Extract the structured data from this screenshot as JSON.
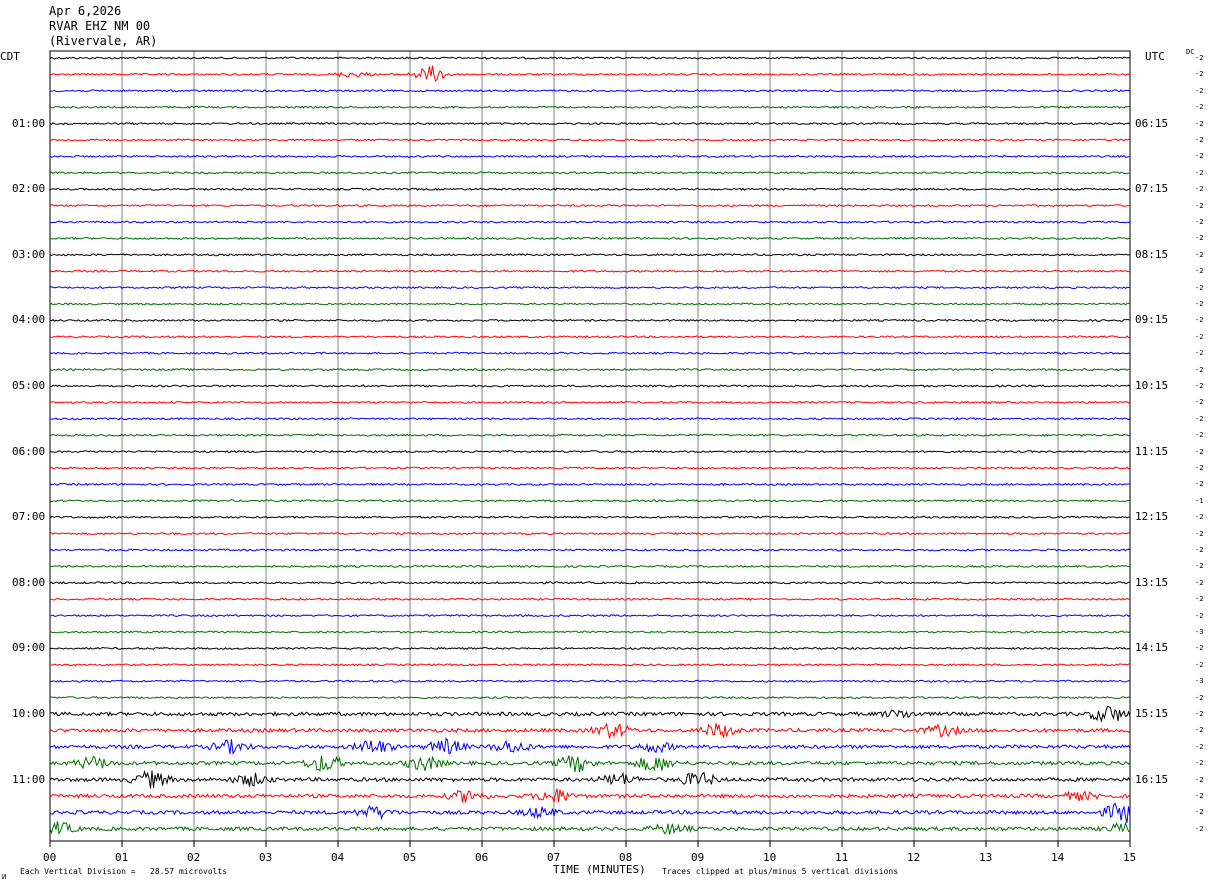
{
  "header": {
    "date": "Apr 6,2026",
    "station": "RVAR EHZ NM 00",
    "location": "(Rivervale, AR)"
  },
  "left_axis_title": "CDT",
  "right_axis_title": "UTC",
  "dc_title": "DC",
  "left_time_labels": [
    "01:00",
    "02:00",
    "03:00",
    "04:00",
    "05:00",
    "06:00",
    "07:00",
    "08:00",
    "09:00",
    "10:00",
    "11:00"
  ],
  "right_time_labels": [
    "06:15",
    "07:15",
    "08:15",
    "09:15",
    "10:15",
    "11:15",
    "12:15",
    "13:15",
    "14:15",
    "15:15",
    "16:15"
  ],
  "x_tick_labels": [
    "00",
    "01",
    "02",
    "03",
    "04",
    "05",
    "06",
    "07",
    "08",
    "09",
    "10",
    "11",
    "12",
    "13",
    "14",
    "15"
  ],
  "footer": {
    "xlabel": "TIME (MINUTES)",
    "division_note": "Each Vertical Division =   28.57 microvolts",
    "clip_note": "Traces clipped at plus/minus 5 vertical divisions",
    "corner_mark": "И"
  },
  "colors": {
    "trace_cycle": [
      "#000000",
      "#ff0000",
      "#0000ff",
      "#007000"
    ],
    "grid": "#808080",
    "frame": "#000000"
  },
  "chart_data": {
    "type": "line",
    "title": "RVAR EHZ NM 00",
    "xlabel": "TIME (MINUTES)",
    "ylabel": "",
    "xlim": [
      0,
      15
    ],
    "minutes_per_trace": 15,
    "trace_count": 48,
    "grid": true,
    "dc_offsets": [
      -2,
      -2,
      -2,
      -2,
      -2,
      -2,
      -2,
      -2,
      -2,
      -2,
      -2,
      -2,
      -2,
      -2,
      -2,
      -2,
      -2,
      -2,
      -2,
      -2,
      -2,
      -2,
      -2,
      -2,
      -2,
      -2,
      -2,
      -1,
      -2,
      -2,
      -2,
      -2,
      -2,
      -2,
      -2,
      -3,
      -2,
      -2,
      -3,
      -2,
      -2,
      -2,
      -2,
      -2,
      -2,
      -2,
      -2,
      -2
    ],
    "activity_bursts": [
      {
        "trace": 1,
        "minute": 5.3,
        "amplitude": 3.5
      },
      {
        "trace": 1,
        "minute": 4.2,
        "amplitude": 1.0
      },
      {
        "trace": 40,
        "minute": 14.7,
        "amplitude": 3.5
      },
      {
        "trace": 40,
        "minute": 11.8,
        "amplitude": 1.5
      },
      {
        "trace": 41,
        "minute": 7.8,
        "amplitude": 3.0
      },
      {
        "trace": 41,
        "minute": 9.3,
        "amplitude": 3.0
      },
      {
        "trace": 41,
        "minute": 12.4,
        "amplitude": 2.2
      },
      {
        "trace": 42,
        "minute": 2.5,
        "amplitude": 2.5
      },
      {
        "trace": 42,
        "minute": 4.5,
        "amplitude": 3.0
      },
      {
        "trace": 42,
        "minute": 5.5,
        "amplitude": 3.0
      },
      {
        "trace": 42,
        "minute": 6.4,
        "amplitude": 2.5
      },
      {
        "trace": 42,
        "minute": 8.4,
        "amplitude": 2.0
      },
      {
        "trace": 43,
        "minute": 0.6,
        "amplitude": 2.5
      },
      {
        "trace": 43,
        "minute": 3.8,
        "amplitude": 3.5
      },
      {
        "trace": 43,
        "minute": 5.2,
        "amplitude": 3.0
      },
      {
        "trace": 43,
        "minute": 7.3,
        "amplitude": 3.5
      },
      {
        "trace": 43,
        "minute": 8.4,
        "amplitude": 3.5
      },
      {
        "trace": 44,
        "minute": 1.4,
        "amplitude": 3.5
      },
      {
        "trace": 44,
        "minute": 2.8,
        "amplitude": 2.5
      },
      {
        "trace": 44,
        "minute": 7.9,
        "amplitude": 2.5
      },
      {
        "trace": 44,
        "minute": 9.0,
        "amplitude": 3.0
      },
      {
        "trace": 45,
        "minute": 5.8,
        "amplitude": 2.5
      },
      {
        "trace": 45,
        "minute": 7.0,
        "amplitude": 3.0
      },
      {
        "trace": 45,
        "minute": 14.3,
        "amplitude": 1.5
      },
      {
        "trace": 46,
        "minute": 4.5,
        "amplitude": 2.5
      },
      {
        "trace": 46,
        "minute": 6.8,
        "amplitude": 2.0
      },
      {
        "trace": 46,
        "minute": 14.9,
        "amplitude": 4.5
      },
      {
        "trace": 47,
        "minute": 0.1,
        "amplitude": 2.5
      },
      {
        "trace": 47,
        "minute": 8.6,
        "amplitude": 2.0
      },
      {
        "trace": 47,
        "minute": 14.9,
        "amplitude": 2.0
      }
    ]
  }
}
